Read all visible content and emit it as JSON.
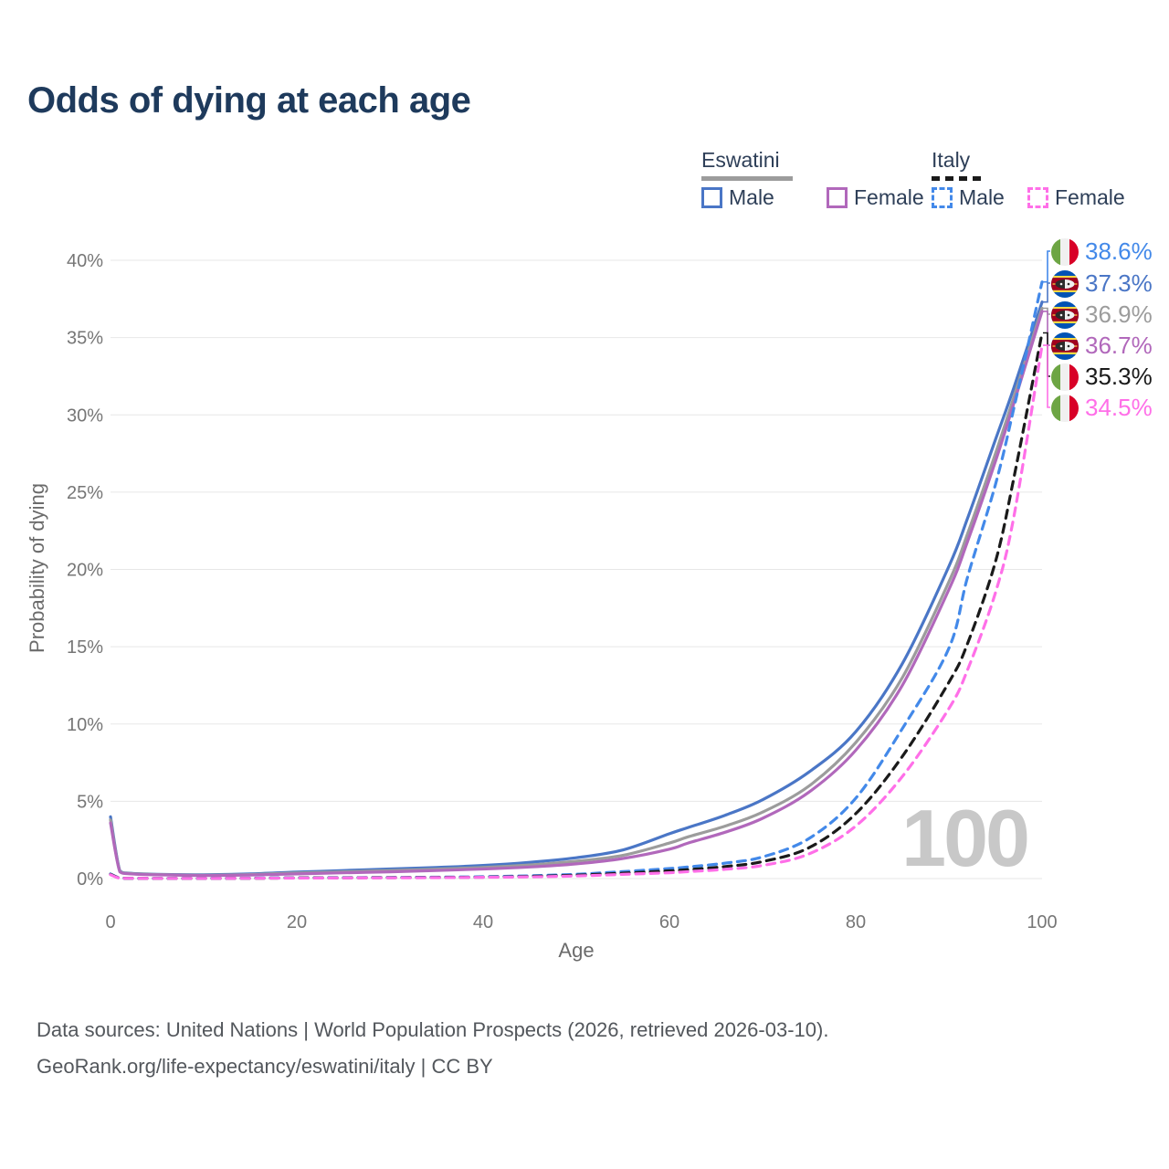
{
  "title": "Odds of dying at each age",
  "legend": {
    "groups": [
      {
        "label": "Eswatini",
        "line_style": "solid",
        "underline_color": "#9c9c9c",
        "items": [
          {
            "label": "Male",
            "color": "#4a76c6",
            "dash": false
          },
          {
            "label": "Female",
            "color": "#b168bb",
            "dash": false
          }
        ]
      },
      {
        "label": "Italy",
        "line_style": "dashed",
        "underline_color": "#1a1a1a",
        "items": [
          {
            "label": "Male",
            "color": "#4389e9",
            "dash": true
          },
          {
            "label": "Female",
            "color": "#ff6fe8",
            "dash": true
          }
        ]
      }
    ]
  },
  "chart_data": {
    "type": "line",
    "title": "Odds of dying at each age",
    "xlabel": "Age",
    "ylabel": "Probability of dying",
    "xlim": [
      0,
      100
    ],
    "ylim": [
      0,
      40
    ],
    "x_ticks": [
      0,
      20,
      40,
      60,
      80,
      100
    ],
    "y_ticks": [
      0,
      5,
      10,
      15,
      20,
      25,
      30,
      35,
      40
    ],
    "y_tick_suffix": "%",
    "grid": "horizontal",
    "age_watermark": "100",
    "x": [
      0,
      1,
      2,
      5,
      10,
      15,
      20,
      25,
      30,
      35,
      40,
      45,
      50,
      55,
      60,
      62,
      66,
      70,
      75,
      80,
      85,
      90,
      92,
      95,
      97,
      100
    ],
    "series": [
      {
        "name": "Eswatini Male",
        "flag": "eswatini",
        "color": "#4a76c6",
        "dash": false,
        "end_label": "37.3%",
        "values": [
          4.0,
          0.5,
          0.35,
          0.28,
          0.25,
          0.3,
          0.42,
          0.52,
          0.62,
          0.72,
          0.85,
          1.05,
          1.35,
          1.85,
          2.9,
          3.3,
          4.1,
          5.1,
          6.9,
          9.5,
          13.9,
          20.2,
          23.3,
          28.4,
          31.8,
          37.3
        ]
      },
      {
        "name": "Eswatini",
        "flag": "eswatini",
        "color": "#9c9c9c",
        "dash": false,
        "end_label": "36.9%",
        "values": [
          3.8,
          0.47,
          0.33,
          0.26,
          0.22,
          0.26,
          0.36,
          0.44,
          0.52,
          0.61,
          0.72,
          0.88,
          1.12,
          1.5,
          2.3,
          2.7,
          3.4,
          4.3,
          6.0,
          8.8,
          13.0,
          19.2,
          22.3,
          27.5,
          31.2,
          36.9
        ]
      },
      {
        "name": "Eswatini Female",
        "flag": "eswatini",
        "color": "#b168bb",
        "dash": false,
        "end_label": "36.7%",
        "values": [
          3.6,
          0.44,
          0.31,
          0.24,
          0.2,
          0.23,
          0.3,
          0.37,
          0.44,
          0.52,
          0.62,
          0.75,
          0.95,
          1.3,
          1.9,
          2.3,
          3.0,
          3.9,
          5.6,
          8.3,
          12.5,
          18.7,
          21.8,
          27.0,
          30.8,
          36.7
        ]
      },
      {
        "name": "Italy Male",
        "flag": "italy",
        "color": "#4389e9",
        "dash": true,
        "end_label": "38.6%",
        "values": [
          0.3,
          0.03,
          0.02,
          0.01,
          0.01,
          0.03,
          0.05,
          0.06,
          0.07,
          0.09,
          0.12,
          0.18,
          0.28,
          0.45,
          0.65,
          0.75,
          1.0,
          1.4,
          2.6,
          5.2,
          9.7,
          14.9,
          19.5,
          25.5,
          30.5,
          38.6
        ]
      },
      {
        "name": "Italy",
        "flag": "italy",
        "color": "#1a1a1a",
        "dash": true,
        "end_label": "35.3%",
        "values": [
          0.27,
          0.03,
          0.02,
          0.01,
          0.01,
          0.02,
          0.04,
          0.05,
          0.06,
          0.07,
          0.09,
          0.14,
          0.22,
          0.35,
          0.5,
          0.58,
          0.78,
          1.1,
          2.0,
          4.2,
          7.9,
          12.7,
          15.2,
          20.5,
          26.0,
          35.3
        ]
      },
      {
        "name": "Italy Female",
        "flag": "italy",
        "color": "#ff6fe8",
        "dash": true,
        "end_label": "34.5%",
        "values": [
          0.25,
          0.02,
          0.02,
          0.01,
          0.01,
          0.02,
          0.03,
          0.04,
          0.05,
          0.06,
          0.08,
          0.11,
          0.17,
          0.27,
          0.38,
          0.45,
          0.6,
          0.85,
          1.6,
          3.4,
          6.6,
          11.0,
          13.5,
          18.5,
          23.5,
          34.5
        ]
      }
    ],
    "end_labels_order": [
      "38.6%",
      "37.3%",
      "36.9%",
      "36.7%",
      "35.3%",
      "34.5%"
    ],
    "legend_position": "top-right"
  },
  "footer": {
    "line1": "Data sources: United Nations | World Population Prospects (2026, retrieved 2026-03-10).",
    "line2": "GeoRank.org/life-expectancy/eswatini/italy | CC BY"
  }
}
